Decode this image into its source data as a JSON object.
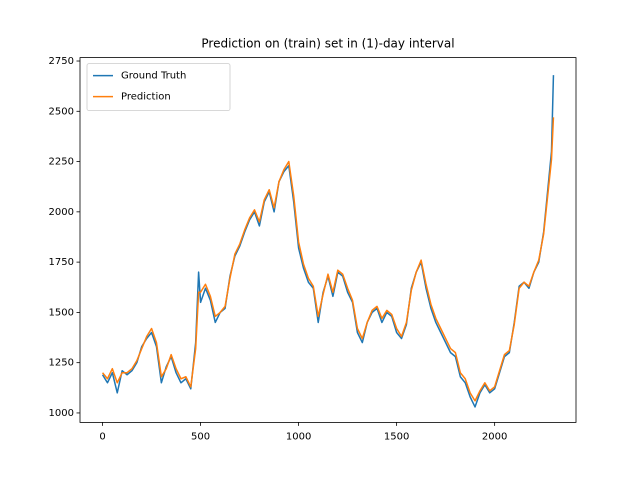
{
  "chart_data": {
    "type": "line",
    "title": "Prediction on (train) set in (1)-day interval",
    "x": [
      0,
      25,
      50,
      75,
      100,
      125,
      150,
      175,
      200,
      225,
      250,
      275,
      300,
      325,
      350,
      375,
      400,
      425,
      450,
      475,
      490,
      500,
      525,
      550,
      575,
      600,
      625,
      650,
      675,
      700,
      725,
      750,
      775,
      800,
      825,
      850,
      875,
      900,
      925,
      950,
      975,
      1000,
      1025,
      1050,
      1075,
      1100,
      1125,
      1150,
      1175,
      1200,
      1225,
      1250,
      1275,
      1300,
      1325,
      1350,
      1375,
      1400,
      1425,
      1450,
      1475,
      1500,
      1525,
      1550,
      1575,
      1600,
      1625,
      1650,
      1675,
      1700,
      1725,
      1750,
      1775,
      1800,
      1825,
      1850,
      1875,
      1900,
      1925,
      1950,
      1975,
      2000,
      2025,
      2050,
      2075,
      2100,
      2125,
      2150,
      2175,
      2200,
      2225,
      2250,
      2275,
      2290,
      2300
    ],
    "series": [
      {
        "name": "Ground Truth",
        "color": "#1f77b4",
        "values": [
          1190,
          1150,
          1200,
          1100,
          1210,
          1190,
          1210,
          1250,
          1330,
          1370,
          1400,
          1330,
          1150,
          1230,
          1280,
          1200,
          1150,
          1170,
          1120,
          1350,
          1700,
          1550,
          1620,
          1560,
          1450,
          1500,
          1520,
          1680,
          1780,
          1830,
          1900,
          1960,
          2000,
          1930,
          2050,
          2100,
          2000,
          2150,
          2200,
          2230,
          2050,
          1820,
          1720,
          1650,
          1620,
          1450,
          1600,
          1680,
          1580,
          1700,
          1680,
          1600,
          1550,
          1400,
          1350,
          1450,
          1500,
          1520,
          1450,
          1500,
          1480,
          1400,
          1370,
          1440,
          1620,
          1700,
          1750,
          1620,
          1520,
          1450,
          1400,
          1350,
          1300,
          1280,
          1180,
          1150,
          1080,
          1030,
          1100,
          1140,
          1100,
          1120,
          1200,
          1280,
          1300,
          1450,
          1630,
          1650,
          1620,
          1700,
          1750,
          1900,
          2150,
          2300,
          2680
        ]
      },
      {
        "name": "Prediction",
        "color": "#ff7f0e",
        "values": [
          1200,
          1170,
          1220,
          1150,
          1200,
          1200,
          1220,
          1260,
          1320,
          1380,
          1420,
          1350,
          1180,
          1220,
          1290,
          1220,
          1170,
          1180,
          1130,
          1320,
          1600,
          1600,
          1640,
          1580,
          1480,
          1500,
          1530,
          1670,
          1790,
          1840,
          1910,
          1970,
          2010,
          1950,
          2060,
          2110,
          2020,
          2150,
          2210,
          2250,
          2080,
          1850,
          1740,
          1670,
          1630,
          1480,
          1590,
          1690,
          1600,
          1710,
          1690,
          1620,
          1560,
          1420,
          1370,
          1450,
          1510,
          1530,
          1470,
          1510,
          1490,
          1420,
          1380,
          1450,
          1610,
          1700,
          1760,
          1640,
          1540,
          1470,
          1420,
          1370,
          1320,
          1300,
          1200,
          1170,
          1100,
          1060,
          1110,
          1150,
          1110,
          1130,
          1210,
          1290,
          1310,
          1440,
          1620,
          1650,
          1630,
          1700,
          1760,
          1890,
          2120,
          2260,
          2470
        ]
      }
    ],
    "xlim": [
      -115,
      2415
    ],
    "xticks": [
      0,
      500,
      1000,
      1500,
      2000
    ],
    "ylim": [
      953,
      2767
    ],
    "yticks": [
      1000,
      1250,
      1500,
      1750,
      2000,
      2250,
      2500,
      2750
    ],
    "legend": "upper left"
  }
}
